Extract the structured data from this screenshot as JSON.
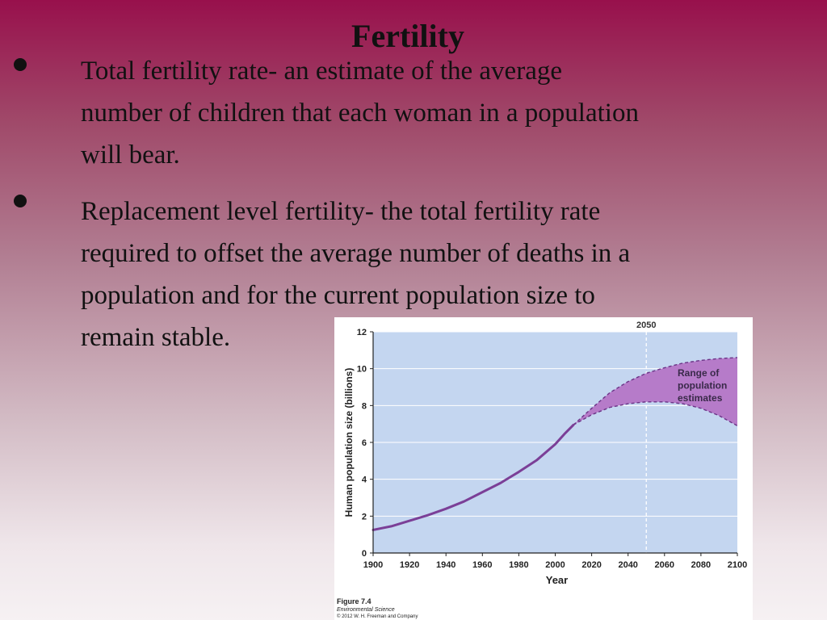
{
  "slide": {
    "title": "Fertility",
    "bullets": [
      {
        "text": "Total fertility rate- an estimate of the average",
        "lines": [
          "Total fertility rate- an estimate of the average",
          "number of children that each woman in a population",
          "will bear."
        ]
      },
      {
        "lines": [
          "Replacement level fertility- the total fertility rate",
          "required to offset the average number of deaths in a",
          "population and for the current population size to",
          "remain stable."
        ]
      }
    ]
  },
  "chart_data": {
    "type": "line",
    "title": "",
    "xlabel": "Year",
    "ylabel": "Human population size (billions)",
    "x_ticks": [
      1900,
      1920,
      1940,
      1960,
      1980,
      2000,
      2020,
      2040,
      2060,
      2080,
      2100
    ],
    "y_ticks": [
      0,
      2,
      4,
      6,
      8,
      10,
      12
    ],
    "xlim": [
      1900,
      2100
    ],
    "ylim": [
      0,
      12
    ],
    "marker_label": "2050",
    "marker_x": 2050,
    "range_label": [
      "Range of",
      "population",
      "estimates"
    ],
    "caption": [
      "Figure 7.4",
      "Environmental Science",
      "© 2012 W. H. Freeman and Company"
    ],
    "colors": {
      "plot_bg": "#c4d6f0",
      "line": "#7b3f97",
      "range_fill": "#b67bc9",
      "range_edge": "#6b3487"
    },
    "series": [
      {
        "x": [
          1900,
          1910,
          1920,
          1930,
          1940,
          1950,
          1960,
          1970,
          1980,
          1990,
          2000,
          2005,
          2010
        ],
        "values": [
          1.25,
          1.45,
          1.75,
          2.05,
          2.4,
          2.8,
          3.3,
          3.8,
          4.4,
          5.05,
          5.9,
          6.45,
          6.95
        ]
      }
    ],
    "range_upper": {
      "x": [
        2010,
        2020,
        2030,
        2040,
        2050,
        2060,
        2070,
        2080,
        2090,
        2100
      ],
      "values": [
        6.95,
        7.85,
        8.7,
        9.3,
        9.75,
        10.05,
        10.3,
        10.45,
        10.55,
        10.6
      ]
    },
    "range_lower": {
      "x": [
        2010,
        2020,
        2030,
        2040,
        2050,
        2060,
        2070,
        2080,
        2090,
        2100
      ],
      "values": [
        6.95,
        7.5,
        7.9,
        8.1,
        8.2,
        8.2,
        8.1,
        7.85,
        7.45,
        6.9
      ]
    }
  }
}
